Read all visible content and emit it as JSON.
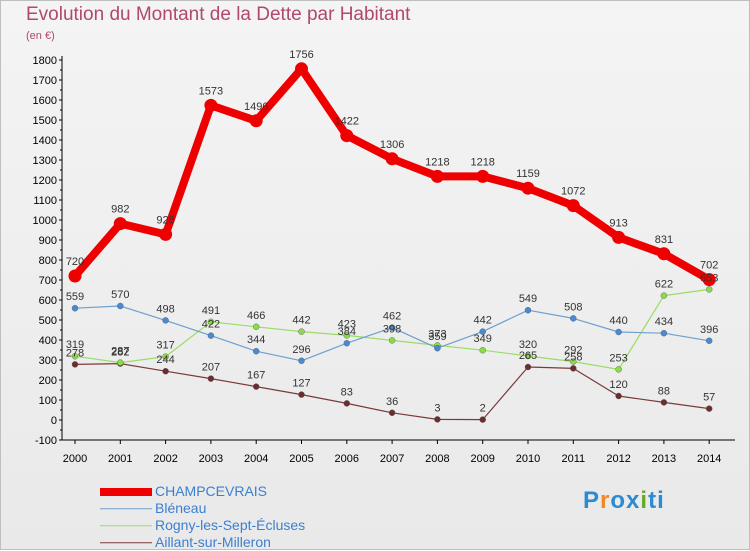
{
  "title": "Evolution du Montant de la Dette par Habitant",
  "subtitle": "(en €)",
  "logo": {
    "text": "Proxiti",
    "letters": [
      "P",
      "r",
      "o",
      "x",
      "i",
      "t",
      "i"
    ],
    "colors": [
      "#2c8bd1",
      "#f28a1e",
      "#2c8bd1",
      "#2c8bd1",
      "#6aa72a",
      "#2c8bd1",
      "#2c8bd1"
    ]
  },
  "chart_data": {
    "type": "line",
    "x": [
      "2000",
      "2001",
      "2002",
      "2003",
      "2004",
      "2005",
      "2006",
      "2007",
      "2008",
      "2009",
      "2010",
      "2011",
      "2012",
      "2013",
      "2014"
    ],
    "ylim": [
      -100,
      1800
    ],
    "yticks": [
      1800,
      1700,
      1600,
      1500,
      1400,
      1300,
      1200,
      1100,
      1000,
      900,
      800,
      700,
      600,
      500,
      400,
      300,
      200,
      100,
      0,
      -100
    ],
    "grid": false,
    "legend": "bottom-left",
    "series": [
      {
        "name": "CHAMPCEVRAIS",
        "color": "#ee0000",
        "width": 8,
        "marker_color": "#ee0000",
        "values": [
          720,
          982,
          928,
          1573,
          1496,
          1756,
          1422,
          1306,
          1218,
          1218,
          1159,
          1072,
          913,
          831,
          702
        ],
        "labels": [
          "720",
          "982",
          "928",
          "1573",
          "1496",
          "1756",
          "1422",
          "1306",
          "1218",
          "1218",
          "1159",
          "1072",
          "913",
          "831",
          "702"
        ]
      },
      {
        "name": "Bléneau",
        "color": "#6f9fcf",
        "width": 1.2,
        "marker_color": "#4a8ad1",
        "values": [
          559,
          570,
          498,
          422,
          344,
          296,
          384,
          462,
          359,
          442,
          549,
          508,
          440,
          434,
          396
        ],
        "labels": [
          "559",
          "570",
          "498",
          "422",
          "344",
          "296",
          "384",
          "462",
          "359",
          "442",
          "549",
          "508",
          "440",
          "434",
          "396"
        ]
      },
      {
        "name": "Rogny-les-Sept-Écluses",
        "color": "#99dd66",
        "width": 1.2,
        "marker_color": "#88dd44",
        "values": [
          319,
          287,
          317,
          491,
          466,
          442,
          423,
          398,
          373,
          349,
          320,
          292,
          253,
          622,
          653
        ],
        "labels": [
          "319",
          "287",
          "317",
          "491",
          "466",
          "442",
          "423",
          "398",
          "373",
          "349",
          "320",
          "292",
          "253",
          "622",
          "653"
        ]
      },
      {
        "name": "Aillant-sur-Milleron",
        "color": "#7a3a3a",
        "width": 1.2,
        "marker_color": "#6a2e2e",
        "values": [
          278,
          282,
          244,
          207,
          167,
          127,
          83,
          36,
          3,
          2,
          265,
          258,
          120,
          88,
          57
        ],
        "labels": [
          "278",
          "282",
          "244",
          "207",
          "167",
          "127",
          "83",
          "36",
          "3",
          "2",
          "265",
          "258",
          "120",
          "88",
          "57"
        ]
      }
    ]
  }
}
